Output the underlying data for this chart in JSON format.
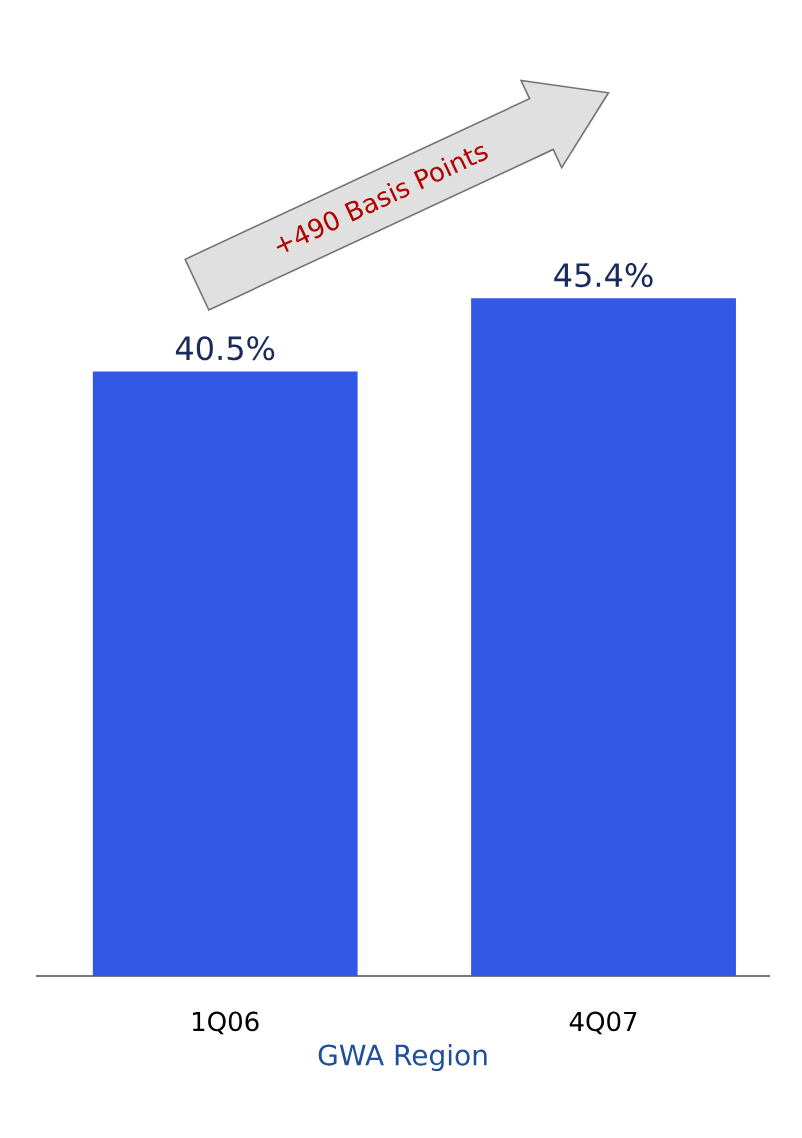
{
  "chart_data": {
    "type": "bar",
    "xlabel": "GWA Region",
    "categories": [
      "1Q06",
      "4Q07"
    ],
    "values": [
      40.5,
      45.4
    ],
    "value_labels": [
      "40.5%",
      "45.4%"
    ],
    "color": "#3358e6",
    "annotations": [
      "+490 Basis Points"
    ]
  }
}
